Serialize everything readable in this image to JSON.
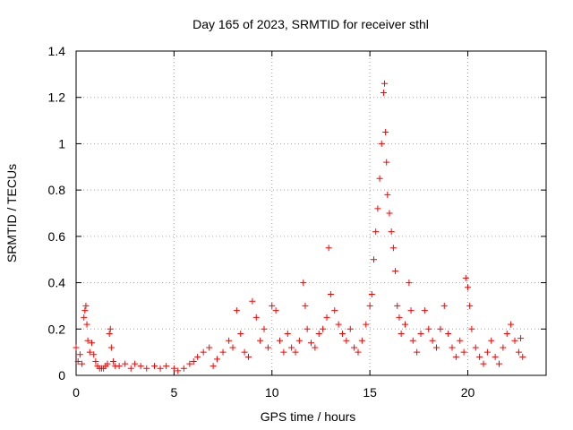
{
  "chart_data": {
    "type": "scatter",
    "title": "Day 165 of 2023, SRMTID for receiver sthl",
    "xlabel": "GPS time / hours",
    "ylabel": "SRMTID / TECUs",
    "xlim": [
      0,
      24
    ],
    "ylim": [
      0,
      1.4
    ],
    "x_ticks": [
      0,
      5,
      10,
      15,
      20
    ],
    "x_tick_labels": [
      "0",
      "5",
      "10",
      "15",
      "20"
    ],
    "y_ticks": [
      0,
      0.2,
      0.4,
      0.6,
      0.8,
      1.0,
      1.2,
      1.4
    ],
    "y_tick_labels": [
      "0",
      "0.2",
      "0.4",
      "0.6",
      "0.8",
      "1",
      "1.2",
      "1.4"
    ],
    "grid": true,
    "marker": "+",
    "series": [
      {
        "name": "SRMTID",
        "color": "#ff0000",
        "x": [
          0.0,
          0.1,
          0.2,
          0.3,
          0.4,
          0.45,
          0.5,
          0.55,
          0.6,
          0.7,
          0.8,
          0.9,
          1.0,
          1.1,
          1.2,
          1.3,
          1.4,
          1.5,
          1.6,
          1.7,
          1.75,
          1.8,
          1.9,
          2.0,
          2.2,
          2.5,
          2.8,
          3.0,
          3.3,
          3.6,
          4.0,
          4.3,
          4.6,
          5.0,
          5.2,
          5.5,
          5.8,
          6.0,
          6.2,
          6.5,
          6.8,
          7.0,
          7.2,
          7.5,
          7.8,
          8.0,
          8.2,
          8.4,
          8.6,
          8.8,
          9.0,
          9.2,
          9.4,
          9.6,
          9.8,
          10.0,
          10.2,
          10.4,
          10.6,
          10.8,
          11.0,
          11.2,
          11.4,
          11.6,
          11.7,
          11.8,
          12.0,
          12.2,
          12.4,
          12.6,
          12.8,
          12.9,
          13.0,
          13.2,
          13.4,
          13.6,
          13.8,
          14.0,
          14.2,
          14.4,
          14.6,
          14.8,
          15.0,
          15.1,
          15.2,
          15.3,
          15.4,
          15.5,
          15.6,
          15.7,
          15.75,
          15.8,
          15.85,
          15.9,
          16.0,
          16.1,
          16.2,
          16.3,
          16.4,
          16.5,
          16.6,
          16.8,
          17.0,
          17.1,
          17.2,
          17.4,
          17.6,
          17.8,
          18.0,
          18.2,
          18.4,
          18.6,
          18.8,
          19.0,
          19.2,
          19.4,
          19.6,
          19.8,
          19.9,
          20.0,
          20.1,
          20.2,
          20.4,
          20.6,
          20.8,
          21.0,
          21.2,
          21.4,
          21.6,
          21.8,
          22.0,
          22.2,
          22.4,
          22.6,
          22.7,
          22.8
        ],
        "y": [
          0.12,
          0.06,
          0.09,
          0.05,
          0.25,
          0.28,
          0.3,
          0.22,
          0.15,
          0.1,
          0.14,
          0.09,
          0.06,
          0.04,
          0.03,
          0.03,
          0.03,
          0.04,
          0.05,
          0.18,
          0.2,
          0.12,
          0.06,
          0.04,
          0.04,
          0.05,
          0.03,
          0.05,
          0.04,
          0.03,
          0.04,
          0.03,
          0.04,
          0.03,
          0.02,
          0.03,
          0.05,
          0.06,
          0.08,
          0.1,
          0.12,
          0.04,
          0.07,
          0.1,
          0.15,
          0.12,
          0.28,
          0.18,
          0.1,
          0.08,
          0.32,
          0.25,
          0.15,
          0.2,
          0.12,
          0.3,
          0.28,
          0.15,
          0.1,
          0.18,
          0.12,
          0.1,
          0.15,
          0.4,
          0.3,
          0.2,
          0.14,
          0.12,
          0.18,
          0.2,
          0.25,
          0.55,
          0.35,
          0.28,
          0.22,
          0.18,
          0.15,
          0.2,
          0.12,
          0.1,
          0.15,
          0.22,
          0.3,
          0.35,
          0.5,
          0.62,
          0.72,
          0.85,
          1.0,
          1.22,
          1.26,
          1.05,
          0.92,
          0.78,
          0.7,
          0.62,
          0.55,
          0.45,
          0.3,
          0.25,
          0.18,
          0.22,
          0.4,
          0.28,
          0.15,
          0.1,
          0.18,
          0.28,
          0.2,
          0.15,
          0.12,
          0.2,
          0.3,
          0.18,
          0.12,
          0.08,
          0.15,
          0.1,
          0.42,
          0.38,
          0.3,
          0.2,
          0.12,
          0.08,
          0.05,
          0.1,
          0.15,
          0.08,
          0.05,
          0.12,
          0.18,
          0.22,
          0.15,
          0.1,
          0.16,
          0.08
        ]
      }
    ]
  }
}
